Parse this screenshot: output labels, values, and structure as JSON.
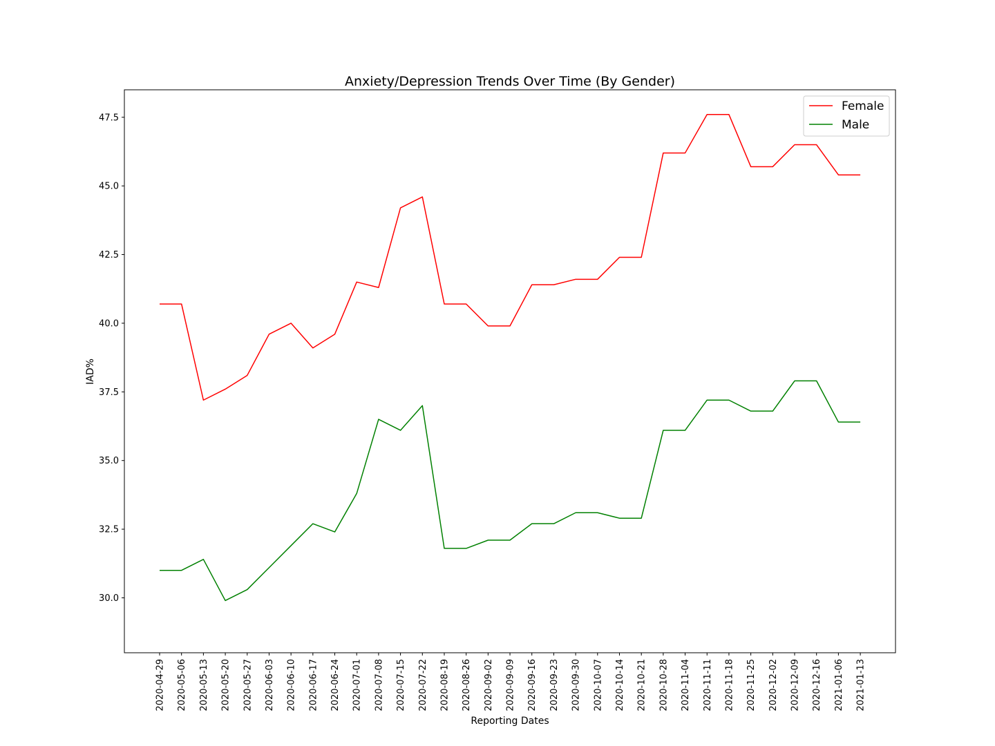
{
  "chart_data": {
    "type": "line",
    "title": "Anxiety/Depression Trends Over Time (By Gender)",
    "xlabel": "Reporting Dates",
    "ylabel": "IAD%",
    "categories": [
      "2020-04-29",
      "2020-05-06",
      "2020-05-13",
      "2020-05-20",
      "2020-05-27",
      "2020-06-03",
      "2020-06-10",
      "2020-06-17",
      "2020-06-24",
      "2020-07-01",
      "2020-07-08",
      "2020-07-15",
      "2020-07-22",
      "2020-08-19",
      "2020-08-26",
      "2020-09-02",
      "2020-09-09",
      "2020-09-16",
      "2020-09-23",
      "2020-09-30",
      "2020-10-07",
      "2020-10-14",
      "2020-10-21",
      "2020-10-28",
      "2020-11-04",
      "2020-11-11",
      "2020-11-18",
      "2020-11-25",
      "2020-12-02",
      "2020-12-09",
      "2020-12-16",
      "2021-01-06",
      "2021-01-13"
    ],
    "yticks": [
      "30.0",
      "32.5",
      "35.0",
      "37.5",
      "40.0",
      "42.5",
      "45.0",
      "47.5"
    ],
    "ylim": [
      28.0,
      48.5
    ],
    "grid": false,
    "legend_position": "top-right",
    "series": [
      {
        "name": "Female",
        "color": "#ff0000",
        "values": [
          40.7,
          40.7,
          37.2,
          37.6,
          38.1,
          39.6,
          40.0,
          39.1,
          39.6,
          41.5,
          41.3,
          44.2,
          44.6,
          40.7,
          40.7,
          39.9,
          39.9,
          41.4,
          41.4,
          41.6,
          41.6,
          42.4,
          42.4,
          46.2,
          46.2,
          47.6,
          47.6,
          45.7,
          45.7,
          46.5,
          46.5,
          45.4,
          45.4
        ]
      },
      {
        "name": "Male",
        "color": "#008000",
        "values": [
          31.0,
          31.0,
          31.4,
          29.9,
          30.3,
          31.1,
          31.9,
          32.7,
          32.4,
          33.8,
          36.5,
          36.1,
          37.0,
          31.8,
          31.8,
          32.1,
          32.1,
          32.7,
          32.7,
          33.1,
          33.1,
          32.9,
          32.9,
          36.1,
          36.1,
          37.2,
          37.2,
          36.8,
          36.8,
          37.9,
          37.9,
          36.4,
          36.4
        ]
      }
    ]
  }
}
